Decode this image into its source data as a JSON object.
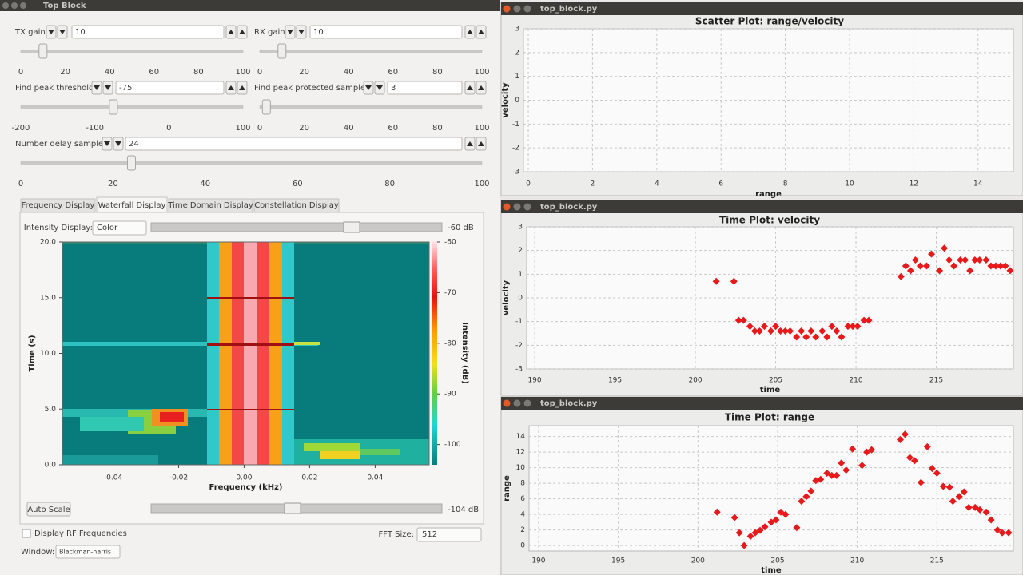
{
  "left_window": {
    "title": "Top Block",
    "controls": [
      {
        "label": "TX gain:",
        "value": 10,
        "xlim": [
          0,
          100
        ],
        "xticks": [
          0,
          20,
          40,
          60,
          80,
          100
        ]
      },
      {
        "label": "RX gain:",
        "value": 10,
        "xlim": [
          0,
          100
        ],
        "xticks": [
          0,
          20,
          40,
          60,
          80,
          100
        ]
      },
      {
        "label": "Find peak threshold:",
        "value": -75,
        "xlim": [
          -200,
          100
        ],
        "xticks": [
          -200,
          -100,
          0,
          100
        ]
      },
      {
        "label": "Find peak protected samples:",
        "value": 3,
        "xlim": [
          0,
          100
        ],
        "xticks": [
          0,
          20,
          40,
          60,
          80,
          100
        ]
      },
      {
        "label": "Number delay samples:",
        "value": 24,
        "xlim": [
          0,
          100
        ],
        "xticks": [
          0,
          20,
          40,
          60,
          80,
          100
        ]
      }
    ],
    "tabs": [
      "Frequency Display",
      "Waterfall Display",
      "Time Domain Display",
      "Constellation Display"
    ],
    "selected_tab": 1,
    "waterfall": {
      "intensity_label": "Intensity Display:",
      "intensity_mode": "Color",
      "max_label": "-60 dB",
      "min_label": "-104 dB",
      "auto_scale": "Auto Scale",
      "checkbox": "Display RF Frequencies",
      "fft_label": "FFT Size:",
      "fft_size": 512,
      "window_label": "Window:",
      "window": "Blackman-harris",
      "chart_data": {
        "type": "heatmap",
        "xlabel": "Frequency (kHz)",
        "ylabel": "Time (s)",
        "colorbar_label": "Intensity (dB)",
        "xlim": [
          -0.0555,
          0.0565
        ],
        "xticks": [
          -0.04,
          -0.02,
          {
            "value": 0,
            "label": "0.00"
          },
          0.02,
          0.04
        ],
        "ylim": [
          0,
          20
        ],
        "yticks": [
          {
            "value": 0,
            "label": "0.0"
          },
          {
            "value": 5,
            "label": "5.0"
          },
          {
            "value": 10,
            "label": "10.0"
          },
          {
            "value": 15,
            "label": "15.0"
          },
          {
            "value": 20,
            "label": "20.0"
          }
        ],
        "clim": [
          -104,
          -60
        ],
        "cticks": [
          -60,
          -70,
          -80,
          -90,
          -100
        ]
      }
    }
  },
  "plots": [
    {
      "window_title": "top_block.py",
      "chart_data": {
        "type": "scatter",
        "title": "Scatter Plot: range/velocity",
        "xlabel": "range",
        "ylabel": "velocity",
        "xlim": [
          -0.15,
          15.1
        ],
        "xticks": [
          0,
          2,
          4,
          6,
          8,
          10,
          12,
          14
        ],
        "ylim": [
          -3,
          3
        ],
        "yticks": [
          -3,
          -2,
          -1,
          0,
          1,
          2,
          3
        ],
        "grid": true
      }
    },
    {
      "window_title": "top_block.py",
      "chart_data": {
        "type": "scatter",
        "title": "Time Plot: velocity",
        "xlabel": "time",
        "ylabel": "velocity",
        "xlim": [
          189.5,
          219.8
        ],
        "xticks": [
          190,
          195,
          200,
          205,
          210,
          215
        ],
        "ylim": [
          -3,
          3
        ],
        "yticks": [
          -3,
          -2,
          -1,
          0,
          1,
          2,
          3
        ],
        "grid": true,
        "color": "#e8191b",
        "x": [
          201.3,
          202.4,
          202.7,
          203.0,
          203.4,
          203.7,
          204.0,
          204.3,
          204.7,
          205.0,
          205.3,
          205.6,
          205.9,
          206.3,
          206.6,
          206.9,
          207.2,
          207.5,
          207.9,
          208.2,
          208.5,
          208.8,
          209.1,
          209.5,
          209.8,
          210.1,
          210.5,
          210.8,
          212.8,
          213.1,
          213.4,
          213.7,
          214.0,
          214.4,
          214.7,
          215.2,
          215.5,
          215.8,
          216.1,
          216.5,
          216.8,
          217.1,
          217.4,
          217.7,
          218.1,
          218.4,
          218.7,
          219.0,
          219.3,
          219.6
        ],
        "values": [
          0.7,
          0.7,
          -0.95,
          -0.95,
          -1.2,
          -1.4,
          -1.4,
          -1.2,
          -1.4,
          -1.2,
          -1.4,
          -1.4,
          -1.4,
          -1.65,
          -1.4,
          -1.65,
          -1.4,
          -1.65,
          -1.4,
          -1.65,
          -1.2,
          -1.4,
          -1.65,
          -1.2,
          -1.2,
          -1.2,
          -0.95,
          -0.95,
          0.9,
          1.35,
          1.15,
          1.6,
          1.35,
          1.35,
          1.85,
          1.15,
          2.1,
          1.6,
          1.35,
          1.6,
          1.6,
          1.15,
          1.6,
          1.6,
          1.6,
          1.35,
          1.35,
          1.35,
          1.35,
          1.15
        ]
      }
    },
    {
      "window_title": "top_block.py",
      "chart_data": {
        "type": "scatter",
        "title": "Time Plot: range",
        "xlabel": "time",
        "ylabel": "range",
        "xlim": [
          189.4,
          219.8
        ],
        "xticks": [
          190,
          195,
          200,
          205,
          210,
          215
        ],
        "ylim": [
          -0.7,
          15.4
        ],
        "yticks": [
          0,
          2,
          4,
          6,
          8,
          10,
          12,
          14
        ],
        "grid": true,
        "color": "#e8191b",
        "x": [
          201.2,
          202.3,
          202.6,
          202.9,
          203.3,
          203.6,
          203.9,
          204.2,
          204.6,
          204.9,
          205.2,
          205.5,
          206.2,
          206.5,
          206.8,
          207.1,
          207.4,
          207.7,
          208.1,
          208.4,
          208.7,
          209.0,
          209.3,
          209.7,
          210.3,
          210.6,
          210.9,
          212.7,
          213.0,
          213.3,
          213.6,
          214.0,
          214.4,
          214.7,
          215.0,
          215.4,
          215.8,
          216.0,
          216.4,
          216.7,
          217.0,
          217.4,
          217.7,
          218.1,
          218.4,
          218.8,
          219.1,
          219.5
        ],
        "values": [
          4.3,
          3.6,
          1.65,
          0,
          1.2,
          1.65,
          1.95,
          2.4,
          3.0,
          3.3,
          4.3,
          4.0,
          2.3,
          5.7,
          6.3,
          7.0,
          8.35,
          8.5,
          9.3,
          9.0,
          9.0,
          10.6,
          9.7,
          12.4,
          10.3,
          12.0,
          12.3,
          13.6,
          14.3,
          11.3,
          10.9,
          8.1,
          12.7,
          9.9,
          9.3,
          7.6,
          7.5,
          5.7,
          6.3,
          6.9,
          4.9,
          4.9,
          4.6,
          4.3,
          3.3,
          2.0,
          1.65,
          1.65
        ]
      }
    }
  ]
}
